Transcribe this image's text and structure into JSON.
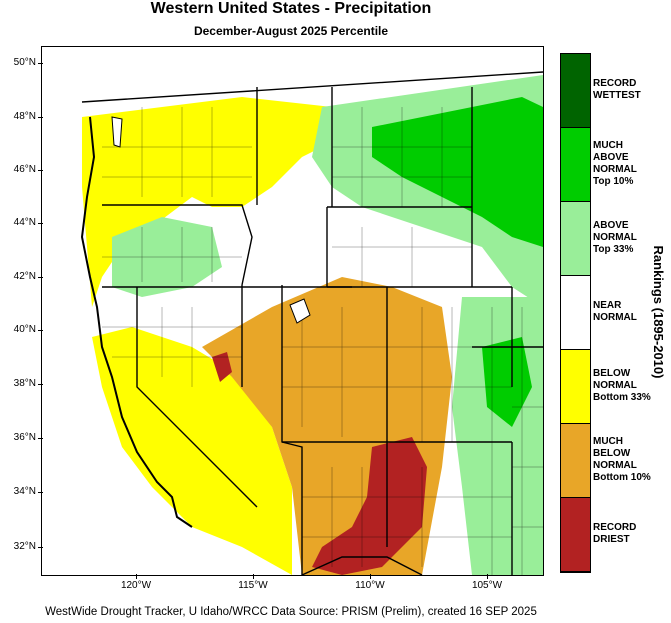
{
  "title": "Western United States - Precipitation",
  "subtitle": "December-August 2025 Percentile",
  "credit": "WestWide Drought Tracker, U Idaho/WRCC Data Source: PRISM (Prelim), created 16 SEP 2025",
  "axis": {
    "lat_labels": [
      "50°N",
      "48°N",
      "46°N",
      "44°N",
      "42°N",
      "40°N",
      "38°N",
      "36°N",
      "34°N",
      "32°N"
    ],
    "lon_labels": [
      "120°W",
      "115°W",
      "110°W",
      "105°W"
    ]
  },
  "legend": {
    "title": "Rankings (1895-2010)",
    "items": [
      {
        "label": [
          "RECORD",
          "WETTEST"
        ],
        "color": "#006400"
      },
      {
        "label": [
          "MUCH",
          "ABOVE",
          "NORMAL",
          "Top 10%"
        ],
        "color": "#00cc00"
      },
      {
        "label": [
          "ABOVE",
          "NORMAL",
          "Top 33%"
        ],
        "color": "#99ee99"
      },
      {
        "label": [
          "NEAR",
          "NORMAL"
        ],
        "color": "#ffffff"
      },
      {
        "label": [
          "BELOW",
          "NORMAL",
          "Bottom 33%"
        ],
        "color": "#ffff00"
      },
      {
        "label": [
          "MUCH",
          "BELOW",
          "NORMAL",
          "Bottom 10%"
        ],
        "color": "#e8a628"
      },
      {
        "label": [
          "RECORD",
          "DRIEST"
        ],
        "color": "#b22222"
      }
    ]
  },
  "colors": {
    "record_driest": "#b22222",
    "much_below": "#e8a628",
    "below": "#ffff00",
    "near": "#ffffff",
    "above": "#99ee99",
    "much_above": "#00cc00",
    "record_wettest": "#006400"
  }
}
